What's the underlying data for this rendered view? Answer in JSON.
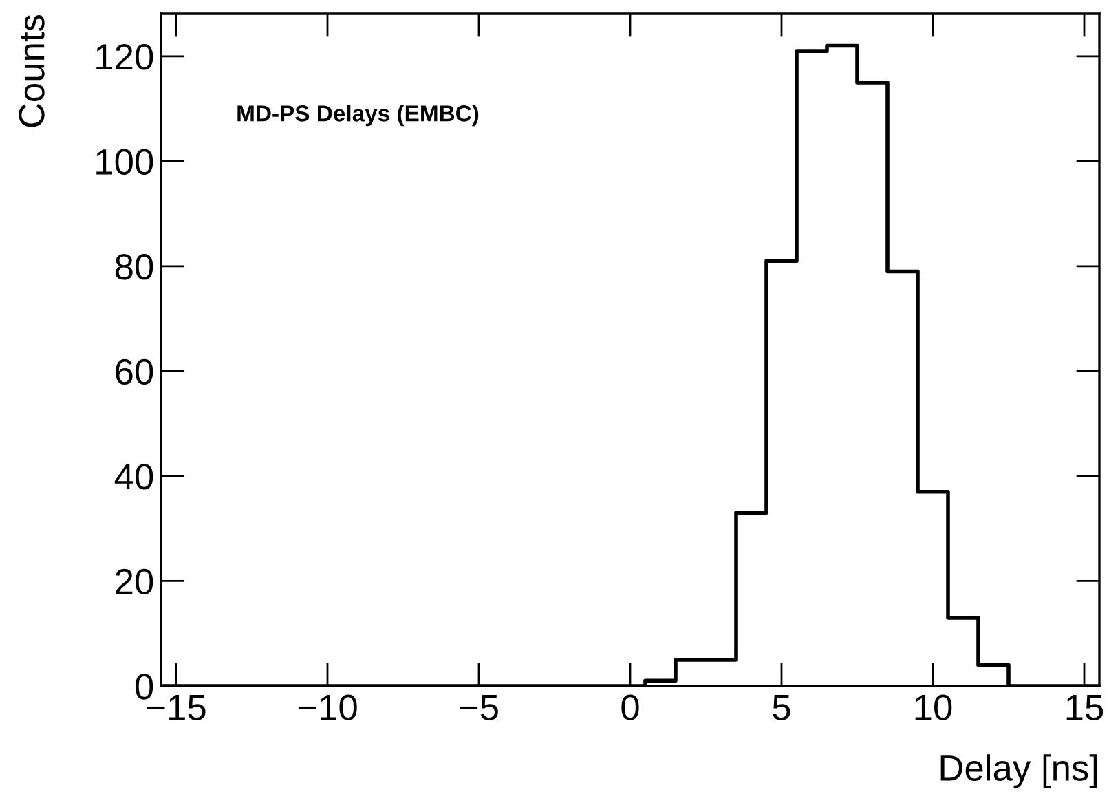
{
  "chart_data": {
    "type": "histogram",
    "xlabel": "Delay [ns]",
    "ylabel": "Counts",
    "annotations": [
      "MD-PS Delays (EMBC)"
    ],
    "bins": [
      -15.5,
      -14.5,
      -13.5,
      -12.5,
      -11.5,
      -10.5,
      -9.5,
      -8.5,
      -7.5,
      -6.5,
      -5.5,
      -4.5,
      -3.5,
      -2.5,
      -1.5,
      -0.5,
      0.5,
      1.5,
      2.5,
      3.5,
      4.5,
      5.5,
      6.5,
      7.5,
      8.5,
      9.5,
      10.5,
      11.5,
      12.5,
      13.5,
      14.5,
      15.5
    ],
    "values": [
      0,
      0,
      0,
      0,
      0,
      0,
      0,
      0,
      0,
      0,
      0,
      0,
      0,
      0,
      0,
      0,
      1,
      5,
      5,
      33,
      81,
      121,
      122,
      115,
      79,
      37,
      13,
      4,
      0,
      0,
      0
    ],
    "color": "#000000",
    "xlim": [
      -15.5,
      15.5
    ],
    "ylim": [
      0,
      128.1
    ],
    "xticks": [
      {
        "value": -15,
        "label": "−15"
      },
      {
        "value": -10,
        "label": "−10"
      },
      {
        "value": -5,
        "label": "−5"
      },
      0,
      5,
      10,
      15
    ],
    "yticks": [
      0,
      20,
      40,
      60,
      80,
      100,
      120
    ],
    "grid": false,
    "legend": false
  }
}
